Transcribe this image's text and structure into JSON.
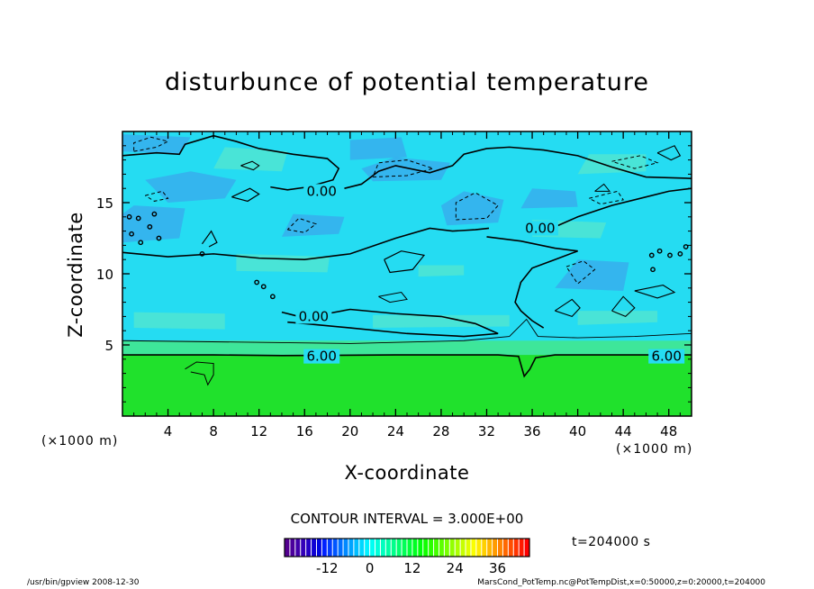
{
  "chart_data": {
    "type": "heatmap",
    "title": "disturbunce of potential temperature",
    "xlabel": "X-coordinate",
    "ylabel": "Z-coordinate",
    "x_unit": "(×1000 m)",
    "y_unit": "(×1000 m)",
    "xlim": [
      0,
      50
    ],
    "ylim": [
      0,
      20
    ],
    "x_ticks": [
      4,
      8,
      12,
      16,
      20,
      24,
      28,
      32,
      36,
      40,
      44,
      48
    ],
    "y_ticks": [
      5,
      10,
      15
    ],
    "contour_interval": "CONTOUR INTERVAL = 3.000E+00",
    "contour_labels": [
      {
        "text": "0.00",
        "x": 17.5,
        "z": 15.8
      },
      {
        "text": "0.00",
        "x": 36.7,
        "z": 13.2
      },
      {
        "text": "0.00",
        "x": 16.8,
        "z": 7.0
      },
      {
        "text": "6.00",
        "x": 17.5,
        "z": 4.2
      },
      {
        "text": "6.00",
        "x": 47.8,
        "z": 4.2
      }
    ],
    "colorbar": {
      "ticks": [
        -12,
        0,
        12,
        24,
        36
      ],
      "range": [
        -24,
        45
      ]
    },
    "time": "t=204000 s",
    "lower_layer_top_z": 4.3
  },
  "footer": {
    "left": "/usr/bin/gpview  2008-12-30",
    "right": "MarsCond_PotTemp.nc@PotTempDist,x=0:50000,z=0:20000,t=204000"
  },
  "colors": {
    "background_field": "#25dcf2",
    "lower_layer": "#20e12c",
    "cool_patch": "#3aa8ec",
    "warm_patch": "#52e6d0"
  }
}
